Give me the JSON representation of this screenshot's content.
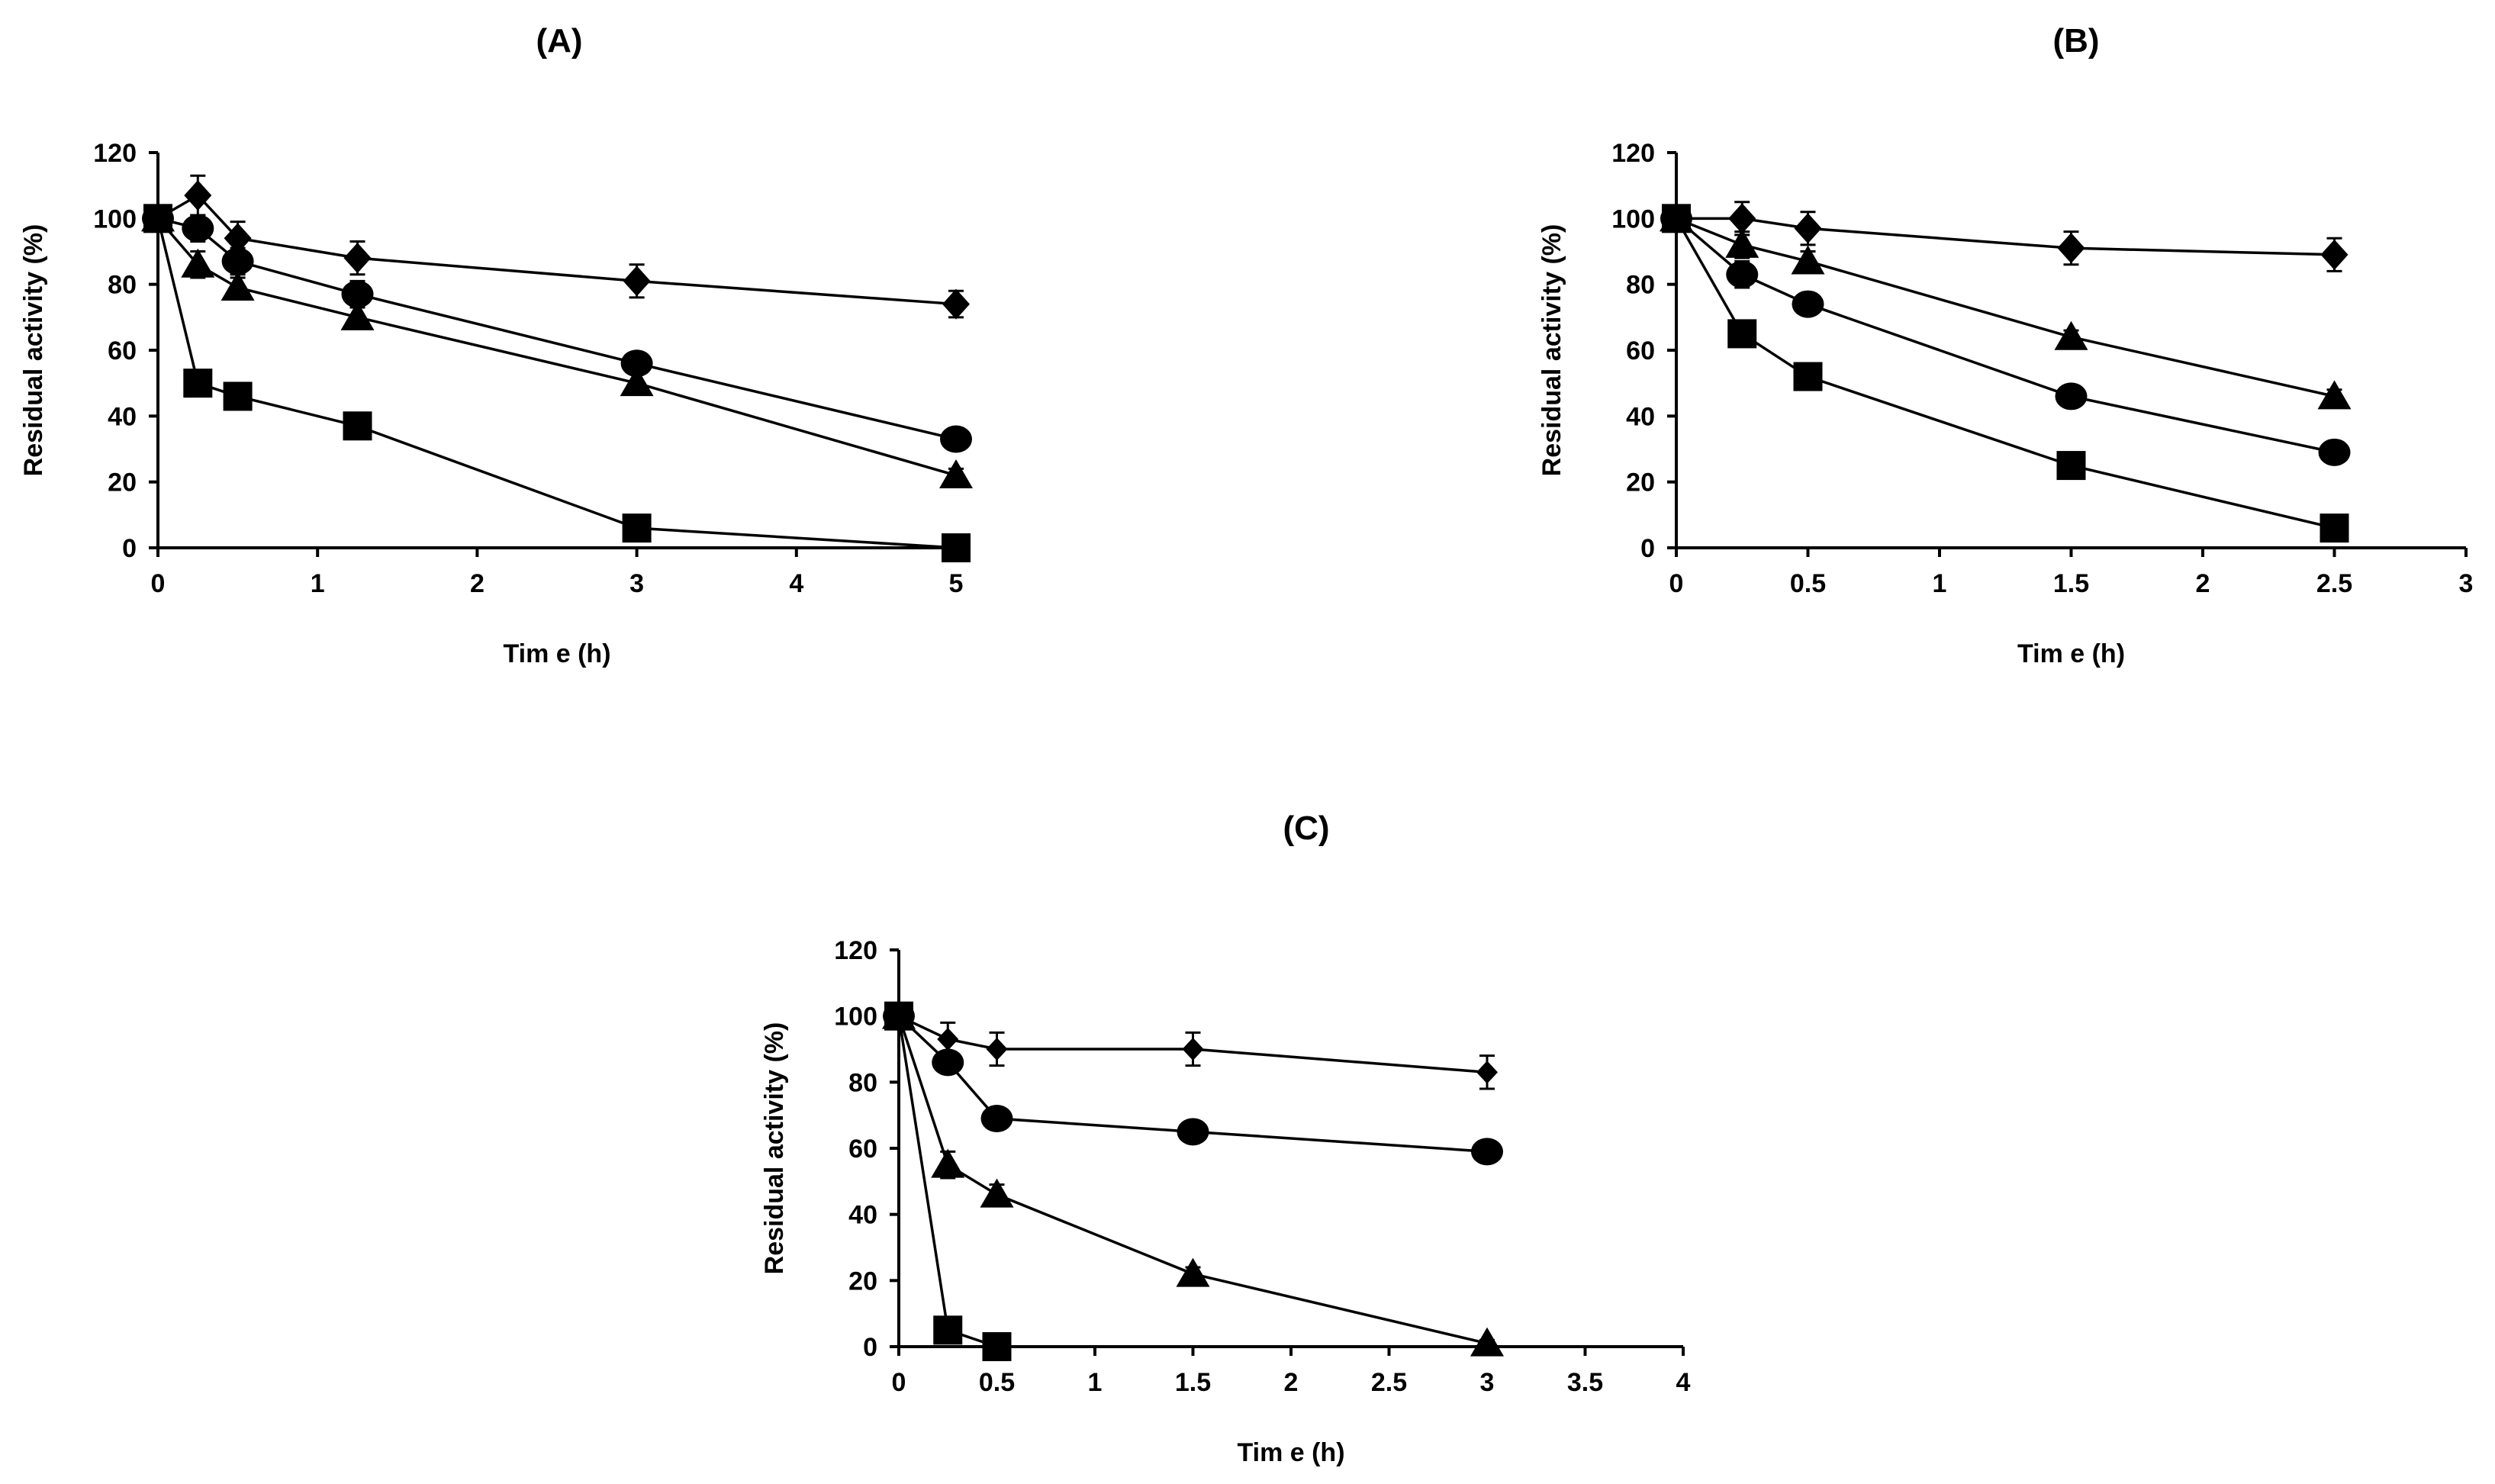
{
  "chart_data": [
    {
      "type": "line",
      "title": "(A)",
      "xlabel": "Tim e  (h)",
      "ylabel": "Residual activity (%)",
      "xlim": [
        0,
        5
      ],
      "ylim": [
        0,
        120
      ],
      "xticks": [
        0,
        1,
        2,
        3,
        4,
        5
      ],
      "xtick_labels": [
        "0",
        "1",
        "2",
        "3",
        "4",
        "5"
      ],
      "yticks": [
        0,
        20,
        40,
        60,
        80,
        100,
        120
      ],
      "ytick_labels": [
        "0",
        "20",
        "40",
        "60",
        "80",
        "100",
        "120"
      ],
      "series": [
        {
          "name": "diamond",
          "marker": "diamond",
          "x": [
            0,
            0.25,
            0.5,
            1.25,
            3,
            5
          ],
          "values": [
            100,
            107,
            94,
            88,
            81,
            74
          ],
          "errors": [
            3,
            6,
            5,
            5,
            5,
            4
          ]
        },
        {
          "name": "circle",
          "marker": "circle",
          "x": [
            0,
            0.25,
            0.5,
            1.25,
            3,
            5
          ],
          "values": [
            100,
            97,
            87,
            77,
            56,
            33
          ],
          "errors": [
            2,
            4,
            4,
            4,
            3,
            2
          ]
        },
        {
          "name": "triangle",
          "marker": "triangle",
          "x": [
            0,
            0.25,
            0.5,
            1.25,
            3,
            5
          ],
          "values": [
            100,
            86,
            79,
            70,
            50,
            22
          ],
          "errors": [
            2,
            4,
            3,
            3,
            3,
            2
          ]
        },
        {
          "name": "square",
          "marker": "square",
          "x": [
            0,
            0.25,
            0.5,
            1.25,
            3,
            5
          ],
          "values": [
            100,
            50,
            46,
            37,
            6,
            0
          ],
          "errors": [
            2,
            2,
            2,
            2,
            1,
            0
          ]
        }
      ]
    },
    {
      "type": "line",
      "title": "(B)",
      "xlabel": "Tim e  (h)",
      "ylabel": "Residual activity (%)",
      "xlim": [
        0,
        3
      ],
      "ylim": [
        0,
        120
      ],
      "xticks": [
        0,
        0.5,
        1,
        1.5,
        2,
        2.5,
        3
      ],
      "xtick_labels": [
        "0",
        "0.5",
        "1",
        "1.5",
        "2",
        "2.5",
        "3"
      ],
      "yticks": [
        0,
        20,
        40,
        60,
        80,
        100,
        120
      ],
      "ytick_labels": [
        "0",
        "20",
        "40",
        "60",
        "80",
        "100",
        "120"
      ],
      "series": [
        {
          "name": "diamond",
          "marker": "diamond",
          "x": [
            0,
            0.25,
            0.5,
            1.5,
            2.5
          ],
          "values": [
            100,
            100,
            97,
            91,
            89
          ],
          "errors": [
            3,
            5,
            5,
            5,
            5
          ]
        },
        {
          "name": "triangle",
          "marker": "triangle",
          "x": [
            0,
            0.25,
            0.5,
            1.5,
            2.5
          ],
          "values": [
            100,
            92,
            87,
            64,
            46
          ],
          "errors": [
            2,
            4,
            3,
            2,
            2
          ]
        },
        {
          "name": "circle",
          "marker": "circle",
          "x": [
            0,
            0.25,
            0.5,
            1.5,
            2.5
          ],
          "values": [
            100,
            83,
            74,
            46,
            29
          ],
          "errors": [
            2,
            4,
            3,
            2,
            2
          ]
        },
        {
          "name": "square",
          "marker": "square",
          "x": [
            0,
            0.25,
            0.5,
            1.5,
            2.5
          ],
          "values": [
            100,
            65,
            52,
            25,
            6
          ],
          "errors": [
            2,
            2,
            2,
            2,
            1
          ]
        }
      ]
    },
    {
      "type": "line",
      "title": "(C)",
      "xlabel": "Tim e  (h)",
      "ylabel": "Residual activity (%)",
      "xlim": [
        0,
        4
      ],
      "ylim": [
        0,
        120
      ],
      "xticks": [
        0,
        0.5,
        1,
        1.5,
        2,
        2.5,
        3,
        3.5,
        4
      ],
      "xtick_labels": [
        "0",
        "0.5",
        "1",
        "1.5",
        "2",
        "2.5",
        "3",
        "3.5",
        "4"
      ],
      "yticks": [
        0,
        20,
        40,
        60,
        80,
        100,
        120
      ],
      "ytick_labels": [
        "0",
        "20",
        "40",
        "60",
        "80",
        "100",
        "120"
      ],
      "series": [
        {
          "name": "diamond",
          "marker": "diamond-small",
          "x": [
            0,
            0.25,
            0.5,
            1.5,
            3
          ],
          "values": [
            100,
            93,
            90,
            90,
            83
          ],
          "errors": [
            3,
            5,
            5,
            5,
            5
          ]
        },
        {
          "name": "circle",
          "marker": "circle",
          "x": [
            0,
            0.25,
            0.5,
            1.5,
            3
          ],
          "values": [
            100,
            86,
            69,
            65,
            59
          ],
          "errors": [
            2,
            3,
            3,
            3,
            3
          ]
        },
        {
          "name": "triangle",
          "marker": "triangle",
          "x": [
            0,
            0.25,
            0.5,
            1.5,
            3
          ],
          "values": [
            100,
            55,
            46,
            22,
            1
          ],
          "errors": [
            2,
            4,
            3,
            2,
            1
          ]
        },
        {
          "name": "square",
          "marker": "square",
          "x": [
            0,
            0.25,
            0.5
          ],
          "values": [
            100,
            5,
            0
          ],
          "errors": [
            2,
            1,
            0
          ]
        }
      ]
    }
  ]
}
